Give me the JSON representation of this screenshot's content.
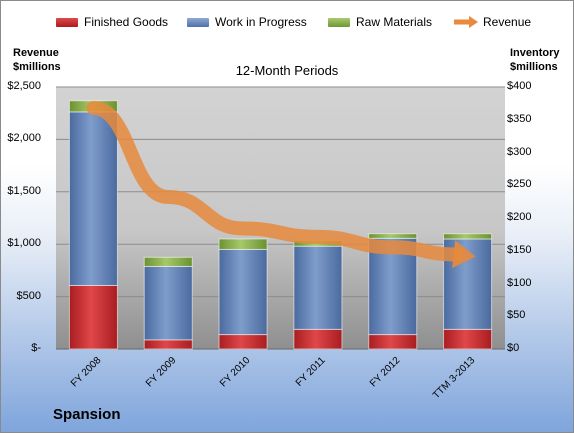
{
  "company": "Spansion",
  "chart_data": {
    "type": "bar",
    "subtype": "stacked-bar-with-line",
    "title": "12-Month Periods",
    "left_axis_label": [
      "Revenue",
      "$millions"
    ],
    "right_axis_label": [
      "Inventory",
      "$millions"
    ],
    "categories": [
      "FY 2008",
      "FY 2009",
      "FY 2010",
      "FY 2011",
      "FY 2012",
      "TTM 3-2013"
    ],
    "left_ticks": [
      "$2,500",
      "$2,000",
      "$1,500",
      "$1,000",
      "$500",
      "$-"
    ],
    "right_ticks": [
      "$400",
      "$350",
      "$300",
      "$250",
      "$200",
      "$150",
      "$100",
      "$50",
      "$0"
    ],
    "left_ylim": [
      0,
      2500
    ],
    "right_ylim": [
      0,
      400
    ],
    "grid": true,
    "legend_position": "top",
    "series": [
      {
        "name": "Finished Goods",
        "axis": "right",
        "color": "#c0262a",
        "values": [
          97,
          14,
          22,
          30,
          22,
          30
        ]
      },
      {
        "name": "Work in Progress",
        "axis": "right",
        "color": "#5b7fb5",
        "values": [
          265,
          112,
          130,
          127,
          147,
          138
        ]
      },
      {
        "name": "Raw Materials",
        "axis": "right",
        "color": "#8bb14a",
        "values": [
          17,
          14,
          16,
          9,
          7,
          8
        ]
      },
      {
        "name": "Revenue",
        "axis": "left",
        "type": "line",
        "color": "#e8893c",
        "values": [
          2300,
          1450,
          1150,
          1070,
          970,
          890
        ]
      }
    ]
  }
}
